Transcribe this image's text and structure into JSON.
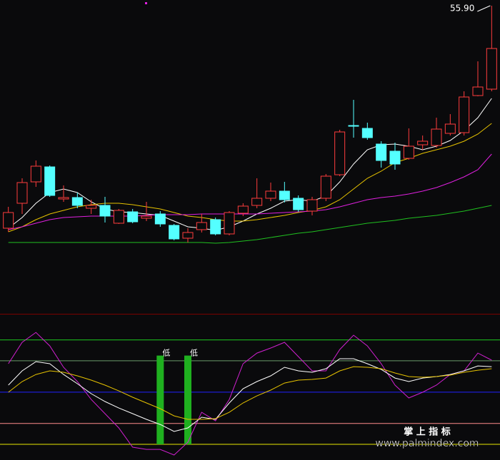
{
  "chart_data": [
    {
      "type": "candlestick",
      "up_color": "#ff3c3c",
      "down_color": "#54ffff",
      "ylim": [
        34.3,
        56.3
      ],
      "open": [
        40.3,
        42.05,
        43.55,
        44.6,
        42.35,
        42.45,
        41.7,
        41.9,
        40.65,
        41.45,
        41.0,
        41.3,
        40.5,
        39.6,
        40.2,
        40.9,
        39.9,
        41.35,
        41.9,
        42.4,
        42.9,
        42.4,
        41.5,
        42.4,
        44.05,
        47.5,
        47.3,
        46.2,
        45.7,
        45.2,
        46.15,
        46.1,
        46.95,
        47.0,
        49.6,
        50.05
      ],
      "high": [
        41.8,
        43.8,
        45.05,
        44.7,
        43.3,
        42.8,
        42.3,
        42.5,
        41.65,
        41.65,
        42.15,
        41.5,
        40.6,
        40.3,
        41.3,
        41.05,
        41.5,
        42.05,
        43.8,
        43.5,
        43.55,
        42.6,
        42.5,
        44.1,
        47.2,
        49.3,
        47.7,
        46.4,
        46.3,
        47.3,
        46.8,
        48.05,
        48.3,
        49.9,
        52.0,
        55.9
      ],
      "low": [
        40.05,
        41.3,
        43.2,
        42.5,
        42.15,
        41.7,
        41.3,
        40.7,
        40.6,
        40.65,
        40.8,
        40.4,
        39.45,
        39.3,
        40.0,
        39.8,
        39.8,
        41.15,
        41.7,
        42.2,
        42.1,
        41.45,
        41.2,
        42.2,
        43.95,
        46.65,
        46.5,
        44.55,
        44.4,
        45.1,
        45.8,
        45.95,
        46.8,
        46.8,
        49.55,
        49.9
      ],
      "close": [
        41.4,
        43.5,
        44.65,
        42.6,
        42.45,
        41.9,
        41.9,
        41.15,
        41.55,
        40.75,
        41.15,
        40.6,
        39.55,
        40.0,
        40.7,
        39.9,
        41.4,
        41.85,
        42.4,
        42.9,
        42.3,
        41.6,
        42.3,
        43.95,
        47.05,
        47.45,
        46.65,
        45.05,
        44.8,
        46.05,
        46.4,
        47.25,
        47.6,
        49.5,
        50.2,
        52.9
      ],
      "series": [
        {
          "color": "#ffffff",
          "values": [
            40.3,
            41.05,
            42.05,
            42.8,
            43.05,
            42.8,
            42.15,
            41.65,
            41.45,
            41.4,
            41.3,
            41.2,
            40.8,
            40.4,
            40.3,
            40.15,
            40.4,
            40.8,
            41.3,
            41.7,
            42.2,
            42.3,
            42.2,
            42.55,
            43.55,
            44.8,
            45.8,
            46.15,
            46.2,
            46.05,
            45.8,
            46.05,
            46.45,
            47.15,
            48.05,
            49.4
          ]
        },
        {
          "color": "#e6c200",
          "values": [
            40.05,
            40.4,
            40.9,
            41.3,
            41.55,
            41.8,
            41.95,
            42.05,
            42.05,
            41.95,
            41.8,
            41.65,
            41.4,
            41.15,
            41.05,
            40.9,
            40.8,
            40.8,
            40.9,
            41.05,
            41.2,
            41.4,
            41.55,
            41.8,
            42.3,
            43.05,
            43.8,
            44.3,
            44.9,
            45.2,
            45.55,
            45.8,
            46.05,
            46.4,
            46.9,
            47.65
          ]
        },
        {
          "color": "#e020e0",
          "values": [
            40.2,
            40.4,
            40.65,
            40.9,
            41.05,
            41.1,
            41.15,
            41.15,
            41.15,
            41.15,
            41.2,
            41.25,
            41.25,
            41.25,
            41.3,
            41.3,
            41.3,
            41.3,
            41.3,
            41.35,
            41.4,
            41.45,
            41.5,
            41.6,
            41.8,
            42.05,
            42.3,
            42.45,
            42.55,
            42.7,
            42.9,
            43.15,
            43.5,
            43.9,
            44.4,
            45.5
          ]
        },
        {
          "color": "#20c020",
          "values": [
            39.3,
            39.3,
            39.3,
            39.3,
            39.3,
            39.3,
            39.3,
            39.3,
            39.3,
            39.3,
            39.3,
            39.3,
            39.3,
            39.3,
            39.3,
            39.25,
            39.3,
            39.4,
            39.5,
            39.65,
            39.8,
            39.95,
            40.05,
            40.2,
            40.35,
            40.5,
            40.65,
            40.75,
            40.85,
            41.0,
            41.1,
            41.2,
            41.35,
            41.5,
            41.7,
            41.9
          ]
        }
      ],
      "annotations": [
        {
          "index": 35,
          "value": 55.9,
          "label": "55.90"
        }
      ]
    },
    {
      "type": "line",
      "ylim": [
        -15,
        125
      ],
      "reference_lines": [
        {
          "value": 100,
          "color": "#1ec81e"
        },
        {
          "value": 80,
          "color": "#6a9a6a"
        },
        {
          "value": 50,
          "color": "#2020ff"
        },
        {
          "value": 20,
          "color": "#ff8c8c"
        },
        {
          "value": 0,
          "color": "#e6e600"
        }
      ],
      "bars": [
        {
          "index": 11,
          "value": 85,
          "label": "低",
          "color": "#1fb01f"
        },
        {
          "index": 13,
          "value": 85,
          "label": "低",
          "color": "#1fb01f"
        }
      ],
      "series": [
        {
          "color": "#d020d0",
          "values": [
            77.2,
            97.7,
            107.2,
            94.3,
            73.8,
            60.1,
            43.0,
            29.4,
            15.7,
            -2.7,
            -4.8,
            -4.8,
            -10.2,
            2.0,
            30.7,
            22.5,
            43.0,
            77.2,
            87.4,
            92.2,
            97.7,
            84.0,
            70.4,
            70.4,
            90.8,
            104.5,
            94.3,
            77.2,
            56.7,
            44.4,
            49.9,
            56.7,
            66.9,
            70.4,
            87.4,
            80.6
          ]
        },
        {
          "color": "#ffffff",
          "values": [
            56.7,
            70.4,
            79.2,
            77.2,
            66.9,
            58.1,
            48.5,
            41.0,
            34.8,
            29.4,
            23.9,
            19.1,
            12.3,
            15.7,
            26.0,
            23.9,
            39.6,
            53.3,
            60.1,
            65.6,
            73.8,
            70.4,
            69.0,
            72.4,
            82.0,
            82.0,
            77.2,
            71.7,
            63.5,
            60.1,
            63.5,
            64.9,
            66.9,
            70.4,
            75.1,
            74.4
          ]
        },
        {
          "color": "#e6c200",
          "values": [
            49.9,
            60.1,
            66.9,
            70.4,
            69.0,
            65.6,
            61.5,
            56.7,
            51.2,
            45.1,
            39.6,
            34.2,
            27.3,
            23.9,
            23.9,
            24.6,
            30.7,
            39.6,
            46.4,
            51.9,
            58.7,
            61.5,
            62.2,
            63.5,
            70.4,
            74.4,
            73.8,
            72.4,
            68.3,
            64.9,
            64.2,
            64.9,
            66.3,
            69.0,
            71.0,
            72.4
          ]
        }
      ]
    }
  ],
  "watermark": {
    "title": "掌 上 指 标",
    "url": "www.palmindex.com"
  }
}
